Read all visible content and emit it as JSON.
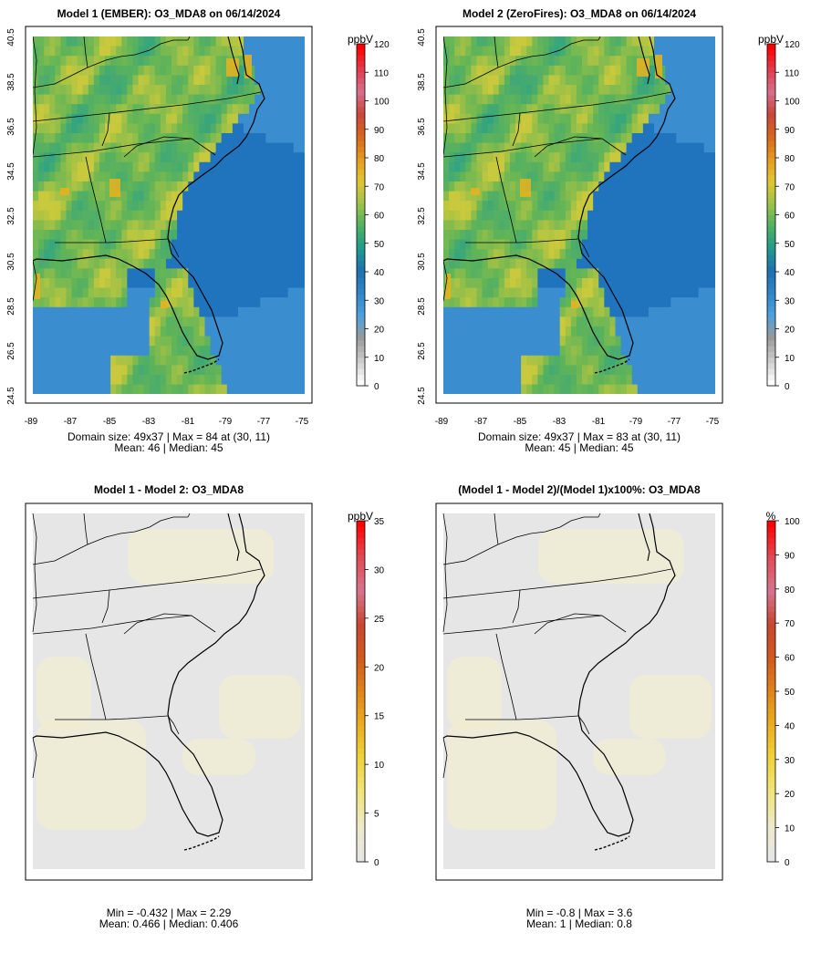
{
  "panels": [
    {
      "title": "Model 1 (EMBER): O3_MDA8 on 06/14/2024",
      "kind": "conc",
      "unit": "ppbV",
      "colorbar_ticks": [
        "0",
        "10",
        "20",
        "30",
        "40",
        "50",
        "60",
        "70",
        "80",
        "90",
        "100",
        "110",
        "120"
      ],
      "caption_line1": "Domain size: 49x37 | Max = 84 at (30, 11)",
      "caption_line2": "Mean: 46 |  Median: 45",
      "lon_ticks": [
        "-89",
        "-87",
        "-85",
        "-83",
        "-81",
        "-79",
        "-77",
        "-75"
      ],
      "lat_ticks": [
        "24.5",
        "26.5",
        "28.5",
        "30.5",
        "32.5",
        "34.5",
        "36.5",
        "38.5",
        "40.5"
      ]
    },
    {
      "title": "Model 2 (ZeroFires): O3_MDA8 on 06/14/2024",
      "kind": "conc",
      "unit": "ppbV",
      "colorbar_ticks": [
        "0",
        "10",
        "20",
        "30",
        "40",
        "50",
        "60",
        "70",
        "80",
        "90",
        "100",
        "110",
        "120"
      ],
      "caption_line1": "Domain size: 49x37 | Max = 83 at (30, 11)",
      "caption_line2": "Mean: 45 |  Median: 45",
      "lon_ticks": [
        "-89",
        "-87",
        "-85",
        "-83",
        "-81",
        "-79",
        "-77",
        "-75"
      ],
      "lat_ticks": [
        "24.5",
        "26.5",
        "28.5",
        "30.5",
        "32.5",
        "34.5",
        "36.5",
        "38.5",
        "40.5"
      ]
    },
    {
      "title": "Model 1 - Model 2: O3_MDA8",
      "kind": "diff",
      "unit": "ppbV",
      "colorbar_ticks": [
        "0",
        "5",
        "10",
        "15",
        "20",
        "25",
        "30",
        "35"
      ],
      "caption_line1": "Min = -0.432 | Max = 2.29",
      "caption_line2": "Mean: 0.466 |  Median: 0.406"
    },
    {
      "title": "(Model 1 - Model 2)/(Model 1)x100%: O3_MDA8",
      "kind": "pct",
      "unit": "%",
      "colorbar_ticks": [
        "0",
        "10",
        "20",
        "30",
        "40",
        "50",
        "60",
        "70",
        "80",
        "90",
        "100"
      ],
      "caption_line1": "Min = -0.8 | Max = 3.6",
      "caption_line2": "Mean: 1 |  Median: 0.8"
    }
  ],
  "colors": {
    "ocean": "#3a8ed0",
    "deep_ocean": "#1f74bd",
    "land_low": "#2aa188",
    "land_mid": "#63b556",
    "land_high": "#c8c93c",
    "hotspot": "#e8b21f",
    "diff_background": "#e6e6e6",
    "diff_tint": "#f1edcf"
  }
}
